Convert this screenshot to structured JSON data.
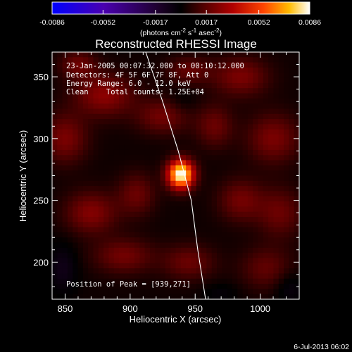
{
  "chart_data": {
    "type": "heatmap",
    "title": "Reconstructed RHESSI Image",
    "xlabel": "Heliocentric X (arcsec)",
    "ylabel": "Heliocentric Y (arcsec)",
    "xlim": [
      840,
      1030
    ],
    "ylim": [
      170,
      370
    ],
    "xticks": [
      850,
      900,
      950,
      1000
    ],
    "yticks": [
      200,
      250,
      300,
      350
    ],
    "colorbar": {
      "label_text": "(photons cm",
      "label_parts": [
        "(photons cm",
        "-2",
        " s",
        "-1",
        " asec",
        "-2",
        ")"
      ],
      "ticks": [
        "-0.0086",
        "-0.0052",
        "-0.0017",
        "0.0017",
        "0.0052",
        "0.0086"
      ],
      "range": [
        -0.0086,
        0.0086
      ],
      "colors": [
        "#0000ff",
        "#5000a0",
        "#200030",
        "#000000",
        "#400000",
        "#b00000",
        "#ff5000",
        "#ffc000",
        "#ffffff"
      ]
    },
    "annotations": [
      "23-Jan-2005 00:07:32.000 to 00:10:12.000",
      "Detectors: 4F 5F 6F 7F 8F, Att 0",
      "Energy Range: 6.0 - 12.0 keV",
      "Clean    Total counts: 1.25E+04"
    ],
    "peak_label": "Position of Peak = [939,271]",
    "peak": {
      "x": 939,
      "y": 271,
      "value": 0.0086
    },
    "limb_curve": [
      [
        912,
        370
      ],
      [
        925,
        330
      ],
      [
        937,
        290
      ],
      [
        947,
        250
      ],
      [
        952,
        210
      ],
      [
        958,
        170
      ]
    ],
    "blobs": [
      {
        "x": 939,
        "y": 271,
        "sx": 7,
        "sy": 8,
        "amp": 1.0
      },
      {
        "x": 880,
        "y": 335,
        "sx": 16,
        "sy": 12,
        "amp": 0.28
      },
      {
        "x": 850,
        "y": 300,
        "sx": 12,
        "sy": 14,
        "amp": 0.24
      },
      {
        "x": 925,
        "y": 318,
        "sx": 14,
        "sy": 10,
        "amp": 0.22
      },
      {
        "x": 985,
        "y": 350,
        "sx": 15,
        "sy": 11,
        "amp": 0.24
      },
      {
        "x": 1010,
        "y": 300,
        "sx": 14,
        "sy": 14,
        "amp": 0.24
      },
      {
        "x": 965,
        "y": 310,
        "sx": 10,
        "sy": 12,
        "amp": 0.2
      },
      {
        "x": 870,
        "y": 240,
        "sx": 14,
        "sy": 12,
        "amp": 0.26
      },
      {
        "x": 905,
        "y": 255,
        "sx": 10,
        "sy": 12,
        "amp": 0.2
      },
      {
        "x": 985,
        "y": 250,
        "sx": 12,
        "sy": 12,
        "amp": 0.22
      },
      {
        "x": 1015,
        "y": 240,
        "sx": 12,
        "sy": 14,
        "amp": 0.2
      },
      {
        "x": 895,
        "y": 205,
        "sx": 16,
        "sy": 10,
        "amp": 0.22
      },
      {
        "x": 945,
        "y": 200,
        "sx": 14,
        "sy": 10,
        "amp": 0.2
      },
      {
        "x": 1005,
        "y": 195,
        "sx": 14,
        "sy": 12,
        "amp": 0.18
      },
      {
        "x": 860,
        "y": 360,
        "sx": 10,
        "sy": 8,
        "amp": 0.2
      },
      {
        "x": 945,
        "y": 355,
        "sx": 12,
        "sy": 8,
        "amp": 0.18
      },
      {
        "x": 848,
        "y": 195,
        "sx": 8,
        "sy": 14,
        "amp": -0.12
      },
      {
        "x": 1022,
        "y": 180,
        "sx": 8,
        "sy": 10,
        "amp": -0.1
      },
      {
        "x": 970,
        "y": 175,
        "sx": 10,
        "sy": 6,
        "amp": -0.06
      },
      {
        "x": 940,
        "y": 330,
        "sx": 8,
        "sy": 8,
        "amp": -0.06
      }
    ]
  },
  "footer": {
    "date": "6-Jul-2013 06:02"
  }
}
